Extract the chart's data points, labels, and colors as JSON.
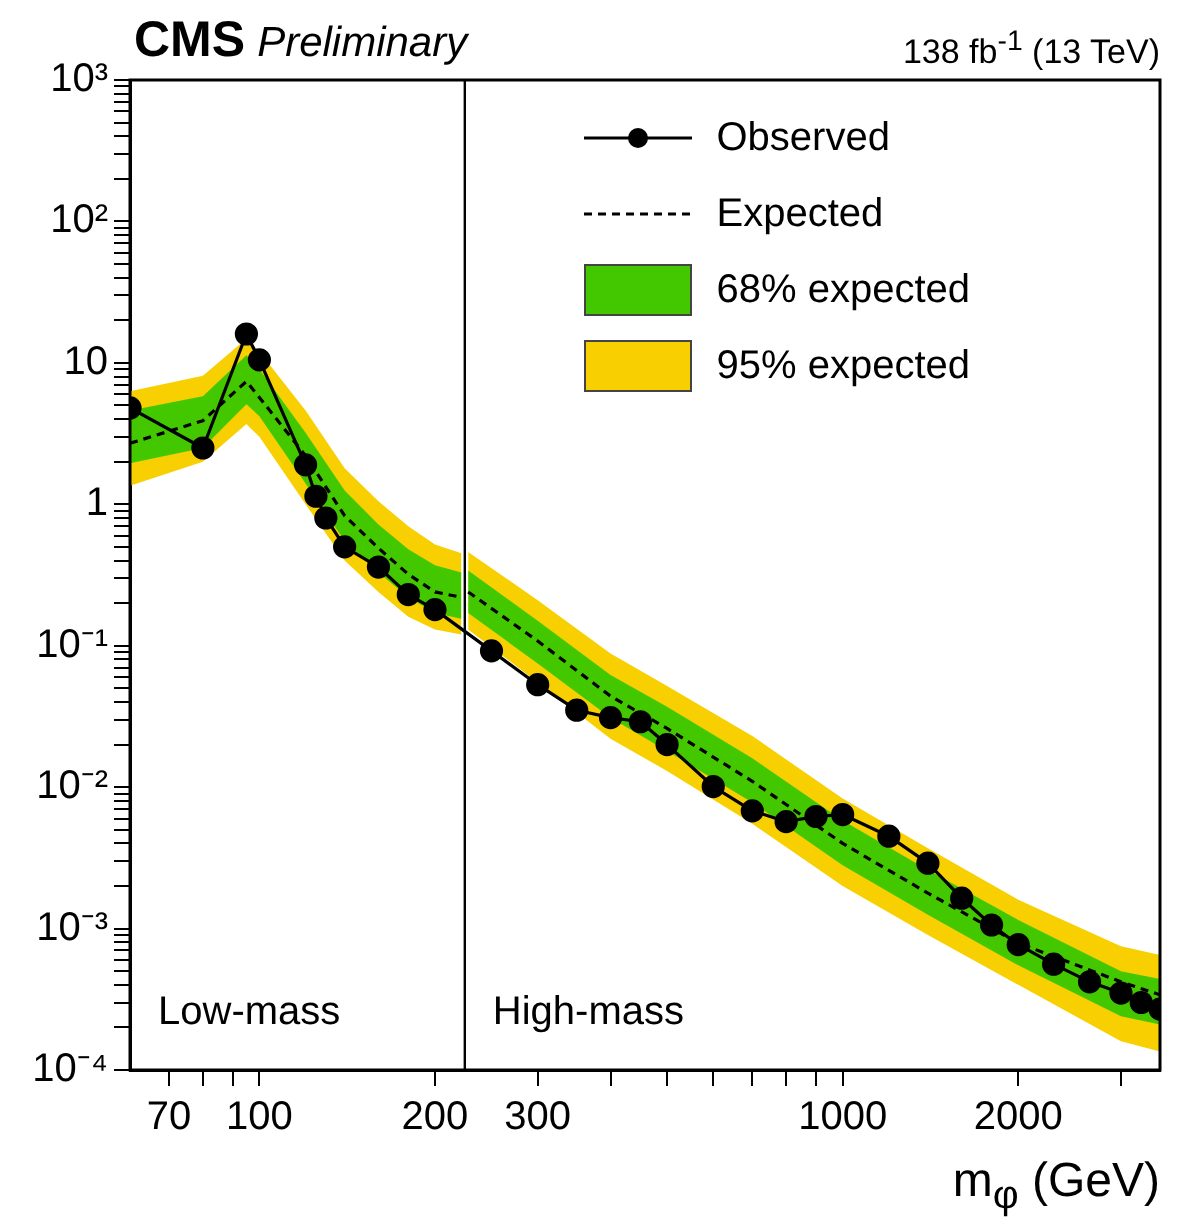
{
  "chart_data": {
    "type": "line",
    "title": "CMS",
    "subtitle": "Preliminary",
    "xlabel": "m$_{φ}$ (GeV)",
    "annotations": [
      "138 fb$^{-1}$ (13 TeV)",
      "Low-mass",
      "High-mass"
    ],
    "log": "xy",
    "grid": false,
    "legend": "top right",
    "xlim": [
      60,
      3500
    ],
    "ylim": [
      0.0001,
      1000
    ],
    "xticks": [
      {
        "value": 70,
        "label": "70"
      },
      {
        "value": 80,
        "label": null
      },
      {
        "value": 90,
        "label": null
      },
      {
        "value": 100,
        "label": "100"
      },
      {
        "value": 200,
        "label": "200"
      },
      {
        "value": 300,
        "label": "300"
      },
      {
        "value": 400,
        "label": null
      },
      {
        "value": 500,
        "label": null
      },
      {
        "value": 600,
        "label": null
      },
      {
        "value": 700,
        "label": null
      },
      {
        "value": 800,
        "label": null
      },
      {
        "value": 900,
        "label": null
      },
      {
        "value": 1000,
        "label": "1000"
      },
      {
        "value": 2000,
        "label": "2000"
      },
      {
        "value": 3000,
        "label": null
      }
    ],
    "yticks": [
      {
        "value": 0.0001,
        "label": "10⁻⁴"
      },
      {
        "value": 0.0002,
        "label": null
      },
      {
        "value": 0.0003,
        "label": null
      },
      {
        "value": 0.0004,
        "label": null
      },
      {
        "value": 0.0005,
        "label": null
      },
      {
        "value": 0.0006,
        "label": null
      },
      {
        "value": 0.0007,
        "label": null
      },
      {
        "value": 0.0008,
        "label": null
      },
      {
        "value": 0.0009,
        "label": null
      },
      {
        "value": 0.001,
        "label": "10⁻³"
      },
      {
        "value": 0.002,
        "label": null
      },
      {
        "value": 0.003,
        "label": null
      },
      {
        "value": 0.004,
        "label": null
      },
      {
        "value": 0.005,
        "label": null
      },
      {
        "value": 0.006,
        "label": null
      },
      {
        "value": 0.007,
        "label": null
      },
      {
        "value": 0.008,
        "label": null
      },
      {
        "value": 0.009,
        "label": null
      },
      {
        "value": 0.01,
        "label": "10⁻²"
      },
      {
        "value": 0.02,
        "label": null
      },
      {
        "value": 0.03,
        "label": null
      },
      {
        "value": 0.04,
        "label": null
      },
      {
        "value": 0.05,
        "label": null
      },
      {
        "value": 0.06,
        "label": null
      },
      {
        "value": 0.07,
        "label": null
      },
      {
        "value": 0.08,
        "label": null
      },
      {
        "value": 0.09,
        "label": null
      },
      {
        "value": 0.1,
        "label": "10⁻¹"
      },
      {
        "value": 0.2,
        "label": null
      },
      {
        "value": 0.3,
        "label": null
      },
      {
        "value": 0.4,
        "label": null
      },
      {
        "value": 0.5,
        "label": null
      },
      {
        "value": 0.6,
        "label": null
      },
      {
        "value": 0.7,
        "label": null
      },
      {
        "value": 0.8,
        "label": null
      },
      {
        "value": 0.9,
        "label": null
      },
      {
        "value": 1,
        "label": "1"
      },
      {
        "value": 2,
        "label": null
      },
      {
        "value": 3,
        "label": null
      },
      {
        "value": 4,
        "label": null
      },
      {
        "value": 5,
        "label": null
      },
      {
        "value": 6,
        "label": null
      },
      {
        "value": 7,
        "label": null
      },
      {
        "value": 8,
        "label": null
      },
      {
        "value": 9,
        "label": null
      },
      {
        "value": 10,
        "label": "10"
      },
      {
        "value": 20,
        "label": null
      },
      {
        "value": 30,
        "label": null
      },
      {
        "value": 40,
        "label": null
      },
      {
        "value": 50,
        "label": null
      },
      {
        "value": 60,
        "label": null
      },
      {
        "value": 70,
        "label": null
      },
      {
        "value": 80,
        "label": null
      },
      {
        "value": 90,
        "label": null
      },
      {
        "value": 100,
        "label": "10²"
      },
      {
        "value": 200,
        "label": null
      },
      {
        "value": 300,
        "label": null
      },
      {
        "value": 400,
        "label": null
      },
      {
        "value": 500,
        "label": null
      },
      {
        "value": 600,
        "label": null
      },
      {
        "value": 700,
        "label": null
      },
      {
        "value": 800,
        "label": null
      },
      {
        "value": 900,
        "label": null
      },
      {
        "value": 1000,
        "label": "10³"
      }
    ],
    "ref_lines": [
      {
        "axis": "x",
        "value": 225,
        "color": "#000000"
      }
    ],
    "series": [
      {
        "name": "Observed",
        "color": "#000000",
        "marker": "circle",
        "line_style": "solid",
        "x": [
          60,
          80,
          95,
          100,
          120,
          125,
          130,
          140,
          160,
          180,
          200,
          250,
          300,
          350,
          400,
          450,
          500,
          600,
          700,
          800,
          900,
          1000,
          1200,
          1400,
          1600,
          1800,
          2000,
          2300,
          2650,
          3000,
          3250,
          3500
        ],
        "values": [
          4.8,
          2.5,
          16,
          10.5,
          1.9,
          1.14,
          0.8,
          0.5,
          0.36,
          0.23,
          0.18,
          0.092,
          0.053,
          0.035,
          0.031,
          0.029,
          0.02,
          0.0101,
          0.0068,
          0.0057,
          0.0062,
          0.0064,
          0.0045,
          0.0029,
          0.00164,
          0.00106,
          0.00077,
          0.00056,
          0.00042,
          0.00035,
          0.0003,
          0.00027
        ]
      },
      {
        "name": "Expected",
        "color": "#000000",
        "marker": "none",
        "line_style": "dashed",
        "x": [
          60,
          80,
          95,
          100,
          120,
          140,
          160,
          180,
          200,
          222,
          225,
          228,
          300,
          400,
          500,
          700,
          1000,
          1400,
          2000,
          3000,
          3500
        ],
        "values": [
          2.7,
          3.9,
          7.4,
          5.7,
          2.2,
          0.83,
          0.49,
          0.32,
          0.24,
          0.22,
          null,
          0.24,
          0.108,
          0.044,
          0.026,
          0.011,
          0.004,
          0.00178,
          0.00079,
          0.00042,
          0.00034
        ]
      },
      {
        "name": "68% expected",
        "type": "area",
        "color": "#43c800",
        "x": [
          60,
          80,
          95,
          100,
          120,
          140,
          160,
          180,
          200,
          222,
          225,
          228,
          300,
          400,
          500,
          700,
          1000,
          1400,
          2000,
          3000,
          3500
        ],
        "values": [
          null,
          null,
          null,
          null,
          null,
          null,
          null,
          null,
          null,
          null,
          null,
          null,
          null,
          null,
          null,
          null,
          null,
          null,
          null,
          null,
          null
        ],
        "upper": [
          4.6,
          5.8,
          11.3,
          9,
          3.2,
          1.25,
          0.72,
          0.48,
          0.37,
          0.33,
          null,
          0.34,
          0.15,
          0.062,
          0.037,
          0.016,
          0.0058,
          0.0026,
          0.00115,
          0.0005,
          0.00044
        ],
        "lower": [
          1.95,
          2.5,
          5.1,
          4.2,
          1.4,
          0.55,
          0.33,
          0.22,
          0.17,
          0.155,
          null,
          0.17,
          0.075,
          0.031,
          0.018,
          0.0078,
          0.0028,
          0.00125,
          0.00055,
          0.00024,
          0.00021
        ]
      },
      {
        "name": "95% expected",
        "type": "area",
        "color": "#f8cf00",
        "x": [
          60,
          80,
          95,
          100,
          120,
          140,
          160,
          180,
          200,
          222,
          225,
          228,
          300,
          400,
          500,
          700,
          1000,
          1400,
          2000,
          3000,
          3500
        ],
        "values": [
          null,
          null,
          null,
          null,
          null,
          null,
          null,
          null,
          null,
          null,
          null,
          null,
          null,
          null,
          null,
          null,
          null,
          null,
          null,
          null,
          null
        ],
        "upper": [
          6.3,
          8.1,
          14.8,
          12,
          4.6,
          1.8,
          1.05,
          0.7,
          0.52,
          0.45,
          null,
          0.46,
          0.21,
          0.088,
          0.052,
          0.023,
          0.0083,
          0.0037,
          0.0016,
          0.00075,
          0.00065
        ],
        "lower": [
          1.35,
          2.0,
          3.7,
          3,
          1.0,
          0.4,
          0.24,
          0.16,
          0.13,
          0.12,
          null,
          0.13,
          0.055,
          0.022,
          0.013,
          0.0055,
          0.002,
          0.0009,
          0.0004,
          0.00016,
          0.000135
        ]
      }
    ]
  }
}
